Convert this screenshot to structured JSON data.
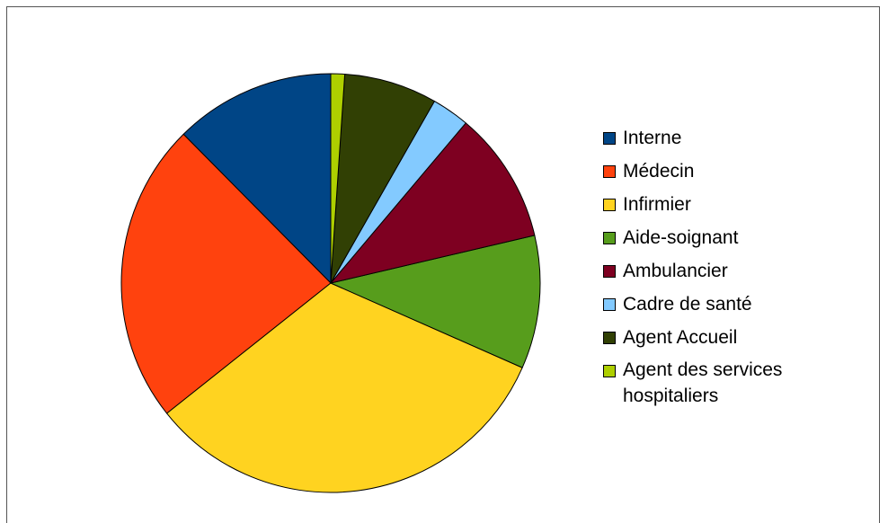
{
  "chart_data": {
    "type": "pie",
    "categories": [
      "Interne",
      "Médecin",
      "Infirmier",
      "Aide-soignant",
      "Ambulancier",
      "Cadre de santé",
      "Agent Accueil",
      "Agent des services hospitaliers"
    ],
    "values": [
      12.8,
      24.0,
      33.7,
      10.6,
      10.5,
      3.0,
      7.4,
      1.1
    ],
    "colors": [
      "#004586",
      "#ff420e",
      "#ffd320",
      "#579d1c",
      "#7e0021",
      "#83caff",
      "#314004",
      "#aecf00"
    ],
    "legend_position": "right"
  }
}
